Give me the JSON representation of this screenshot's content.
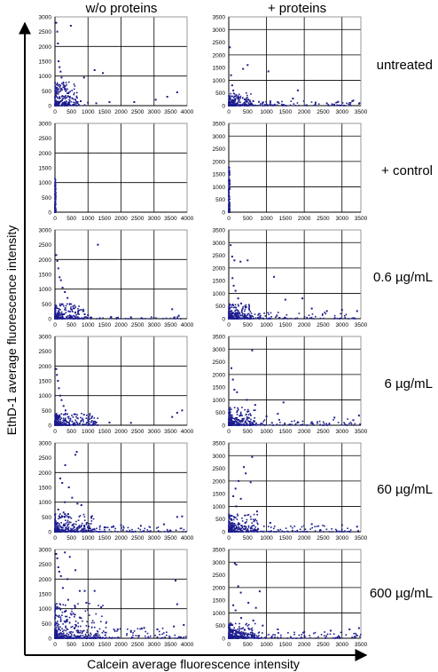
{
  "header": {
    "col_left": "w/o proteins",
    "col_right": "+ proteins"
  },
  "axes": {
    "xlabel": "Calcein average fluorescence intensity",
    "ylabel": "EthD-1 average fluorescence intensity"
  },
  "rows": [
    {
      "label": "untreated"
    },
    {
      "label": "+ control"
    },
    {
      "label": "0.6 µg/mL"
    },
    {
      "label": "6 µg/mL"
    },
    {
      "label": "60 µg/mL"
    },
    {
      "label": "600 µg/mL"
    }
  ],
  "colors": {
    "points": "#1c1c8e",
    "grid": "#000000",
    "frame": "#808080"
  },
  "chart_data": [
    {
      "type": "scatter",
      "panel": "untreated_wo",
      "xlim": [
        0,
        4000
      ],
      "ylim": [
        0,
        3000
      ],
      "xticks": [
        0,
        500,
        1000,
        1500,
        2000,
        2500,
        3000,
        3500,
        4000
      ],
      "yticks": [
        0,
        500,
        1000,
        1500,
        2000,
        2500,
        3000
      ],
      "points": [
        [
          40,
          2800
        ],
        [
          70,
          2500
        ],
        [
          90,
          2100
        ],
        [
          110,
          1500
        ],
        [
          140,
          1300
        ],
        [
          170,
          1150
        ],
        [
          200,
          950
        ],
        [
          260,
          700
        ],
        [
          320,
          560
        ],
        [
          380,
          420
        ],
        [
          450,
          300
        ],
        [
          520,
          250
        ],
        [
          620,
          200
        ],
        [
          780,
          150
        ],
        [
          1000,
          100
        ],
        [
          1250,
          80
        ],
        [
          1450,
          1100
        ],
        [
          1200,
          1200
        ],
        [
          880,
          950
        ],
        [
          480,
          2700
        ],
        [
          3050,
          200
        ],
        [
          3400,
          300
        ],
        [
          3700,
          450
        ],
        [
          2400,
          120
        ],
        [
          1650,
          120
        ],
        [
          60,
          600
        ],
        [
          90,
          400
        ],
        [
          130,
          250
        ],
        [
          180,
          150
        ],
        [
          240,
          90
        ],
        [
          320,
          60
        ],
        [
          420,
          40
        ],
        [
          560,
          30
        ],
        [
          720,
          25
        ],
        [
          900,
          15
        ]
      ],
      "dense": [
        {
          "x": [
            0,
            700
          ],
          "y": [
            0,
            800
          ],
          "n": 240
        }
      ]
    },
    {
      "type": "scatter",
      "panel": "untreated_plus",
      "xlim": [
        0,
        3500
      ],
      "ylim": [
        0,
        3500
      ],
      "xticks": [
        0,
        500,
        1000,
        1500,
        2000,
        2500,
        3000,
        3500
      ],
      "yticks": [
        0,
        500,
        1000,
        1500,
        2000,
        2500,
        3000,
        3500
      ],
      "points": [
        [
          30,
          2300
        ],
        [
          500,
          1600
        ],
        [
          380,
          1450
        ],
        [
          1050,
          1350
        ],
        [
          1830,
          600
        ],
        [
          1700,
          280
        ],
        [
          2300,
          120
        ],
        [
          2900,
          150
        ],
        [
          3300,
          200
        ],
        [
          3450,
          80
        ],
        [
          1300,
          140
        ],
        [
          900,
          120
        ],
        [
          2600,
          90
        ],
        [
          60,
          1200
        ],
        [
          90,
          800
        ],
        [
          120,
          600
        ],
        [
          200,
          400
        ],
        [
          300,
          300
        ],
        [
          420,
          250
        ],
        [
          650,
          180
        ],
        [
          800,
          150
        ]
      ],
      "dense": [
        {
          "x": [
            0,
            600
          ],
          "y": [
            0,
            500
          ],
          "n": 180
        },
        {
          "x": [
            0,
            3500
          ],
          "y": [
            0,
            200
          ],
          "n": 160
        }
      ]
    },
    {
      "type": "scatter",
      "panel": "control_wo",
      "xlim": [
        0,
        4000
      ],
      "ylim": [
        0,
        3000
      ],
      "xticks": [
        0,
        500,
        1000,
        1500,
        2000,
        2500,
        3000,
        3500,
        4000
      ],
      "yticks": [
        0,
        500,
        1000,
        1500,
        2000,
        2500,
        3000
      ],
      "points": [],
      "dense": [
        {
          "x": [
            0,
            25
          ],
          "y": [
            0,
            1150
          ],
          "n": 160
        }
      ]
    },
    {
      "type": "scatter",
      "panel": "control_plus",
      "xlim": [
        0,
        3500
      ],
      "ylim": [
        0,
        3500
      ],
      "xticks": [
        0,
        500,
        1000,
        1500,
        2000,
        2500,
        3000,
        3500
      ],
      "yticks": [
        0,
        500,
        1000,
        1500,
        2000,
        2500,
        3000,
        3500
      ],
      "points": [],
      "dense": [
        {
          "x": [
            0,
            30
          ],
          "y": [
            0,
            1800
          ],
          "n": 170
        }
      ]
    },
    {
      "type": "scatter",
      "panel": "dose06_wo",
      "xlim": [
        0,
        4000
      ],
      "ylim": [
        0,
        3000
      ],
      "xticks": [
        0,
        500,
        1000,
        1500,
        2000,
        2500,
        3000,
        3500,
        4000
      ],
      "yticks": [
        0,
        500,
        1000,
        1500,
        2000,
        2500,
        3000
      ],
      "points": [
        [
          40,
          2150
        ],
        [
          70,
          1950
        ],
        [
          100,
          1700
        ],
        [
          140,
          1400
        ],
        [
          180,
          1300
        ],
        [
          230,
          1050
        ],
        [
          300,
          900
        ],
        [
          380,
          700
        ],
        [
          450,
          500
        ],
        [
          560,
          350
        ],
        [
          700,
          250
        ],
        [
          900,
          150
        ],
        [
          1000,
          120
        ],
        [
          1300,
          2500
        ],
        [
          3550,
          320
        ],
        [
          3750,
          100
        ],
        [
          2300,
          50
        ],
        [
          1700,
          60
        ]
      ],
      "dense": [
        {
          "x": [
            0,
            900
          ],
          "y": [
            0,
            500
          ],
          "n": 220
        },
        {
          "x": [
            0,
            4000
          ],
          "y": [
            0,
            60
          ],
          "n": 80
        }
      ]
    },
    {
      "type": "scatter",
      "panel": "dose06_plus",
      "xlim": [
        0,
        3500
      ],
      "ylim": [
        0,
        3500
      ],
      "xticks": [
        0,
        500,
        1000,
        1500,
        2000,
        2500,
        3000,
        3500
      ],
      "yticks": [
        0,
        500,
        1000,
        1500,
        2000,
        2500,
        3000,
        3500
      ],
      "points": [
        [
          50,
          2900
        ],
        [
          90,
          2450
        ],
        [
          150,
          2300
        ],
        [
          500,
          2300
        ],
        [
          310,
          2250
        ],
        [
          1200,
          1650
        ],
        [
          1950,
          800
        ],
        [
          1500,
          750
        ],
        [
          2600,
          300
        ],
        [
          3000,
          350
        ],
        [
          3400,
          300
        ],
        [
          2200,
          400
        ],
        [
          100,
          1600
        ],
        [
          130,
          1300
        ],
        [
          180,
          1100
        ],
        [
          250,
          800
        ],
        [
          330,
          600
        ],
        [
          450,
          450
        ]
      ],
      "dense": [
        {
          "x": [
            0,
            600
          ],
          "y": [
            0,
            600
          ],
          "n": 200
        },
        {
          "x": [
            0,
            3500
          ],
          "y": [
            0,
            250
          ],
          "n": 160
        }
      ]
    },
    {
      "type": "scatter",
      "panel": "dose6_wo",
      "xlim": [
        0,
        4000
      ],
      "ylim": [
        0,
        3000
      ],
      "xticks": [
        0,
        500,
        1000,
        1500,
        2000,
        2500,
        3000,
        3500,
        4000
      ],
      "yticks": [
        0,
        500,
        1000,
        1500,
        2000,
        2500,
        3000
      ],
      "points": [
        [
          40,
          1900
        ],
        [
          60,
          1700
        ],
        [
          90,
          1500
        ],
        [
          120,
          1250
        ],
        [
          160,
          1000
        ],
        [
          200,
          850
        ],
        [
          260,
          650
        ],
        [
          320,
          500
        ],
        [
          3850,
          500
        ],
        [
          3700,
          420
        ],
        [
          3550,
          280
        ],
        [
          2300,
          80
        ],
        [
          1650,
          90
        ]
      ],
      "dense": [
        {
          "x": [
            0,
            1300
          ],
          "y": [
            0,
            400
          ],
          "n": 300
        }
      ]
    },
    {
      "type": "scatter",
      "panel": "dose6_plus",
      "xlim": [
        0,
        3500
      ],
      "ylim": [
        0,
        3500
      ],
      "xticks": [
        0,
        500,
        1000,
        1500,
        2000,
        2500,
        3000,
        3500
      ],
      "yticks": [
        0,
        500,
        1000,
        1500,
        2000,
        2500,
        3000,
        3500
      ],
      "points": [
        [
          620,
          2950
        ],
        [
          70,
          2250
        ],
        [
          110,
          1800
        ],
        [
          150,
          1400
        ],
        [
          220,
          1300
        ],
        [
          480,
          1000
        ],
        [
          700,
          800
        ],
        [
          1300,
          450
        ],
        [
          1450,
          900
        ],
        [
          2800,
          300
        ],
        [
          3300,
          200
        ],
        [
          3450,
          380
        ],
        [
          2200,
          120
        ],
        [
          1000,
          350
        ]
      ],
      "dense": [
        {
          "x": [
            0,
            700
          ],
          "y": [
            0,
            700
          ],
          "n": 230
        },
        {
          "x": [
            0,
            3500
          ],
          "y": [
            0,
            250
          ],
          "n": 170
        }
      ]
    },
    {
      "type": "scatter",
      "panel": "dose60_wo",
      "xlim": [
        0,
        4000
      ],
      "ylim": [
        0,
        3000
      ],
      "xticks": [
        0,
        500,
        1000,
        1500,
        2000,
        2500,
        3000,
        3500,
        4000
      ],
      "yticks": [
        0,
        500,
        1000,
        1500,
        2000,
        2500,
        3000
      ],
      "points": [
        [
          660,
          2700
        ],
        [
          620,
          2600
        ],
        [
          310,
          2250
        ],
        [
          160,
          1800
        ],
        [
          220,
          1650
        ],
        [
          420,
          1500
        ],
        [
          520,
          1150
        ],
        [
          300,
          1000
        ],
        [
          680,
          950
        ],
        [
          800,
          900
        ],
        [
          100,
          750
        ],
        [
          260,
          650
        ],
        [
          400,
          600
        ],
        [
          1100,
          500
        ],
        [
          3700,
          500
        ],
        [
          3850,
          520
        ],
        [
          3300,
          250
        ],
        [
          2600,
          200
        ],
        [
          2000,
          220
        ],
        [
          1500,
          150
        ]
      ],
      "dense": [
        {
          "x": [
            0,
            1200
          ],
          "y": [
            0,
            600
          ],
          "n": 260
        },
        {
          "x": [
            0,
            4000
          ],
          "y": [
            0,
            200
          ],
          "n": 170
        }
      ]
    },
    {
      "type": "scatter",
      "panel": "dose60_plus",
      "xlim": [
        0,
        3500
      ],
      "ylim": [
        0,
        3500
      ],
      "xticks": [
        0,
        500,
        1000,
        1500,
        2000,
        2500,
        3000,
        3500
      ],
      "yticks": [
        0,
        500,
        1000,
        1500,
        2000,
        2500,
        3000,
        3500
      ],
      "points": [
        [
          620,
          2950
        ],
        [
          400,
          2550
        ],
        [
          450,
          2300
        ],
        [
          260,
          2000
        ],
        [
          580,
          1950
        ],
        [
          180,
          1700
        ],
        [
          120,
          1400
        ],
        [
          320,
          1300
        ],
        [
          200,
          1000
        ],
        [
          750,
          800
        ],
        [
          1100,
          350
        ],
        [
          2200,
          300
        ],
        [
          3000,
          260
        ],
        [
          3400,
          200
        ]
      ],
      "dense": [
        {
          "x": [
            0,
            800
          ],
          "y": [
            0,
            700
          ],
          "n": 230
        },
        {
          "x": [
            0,
            3500
          ],
          "y": [
            0,
            250
          ],
          "n": 170
        }
      ]
    },
    {
      "type": "scatter",
      "panel": "dose600_wo",
      "xlim": [
        0,
        4000
      ],
      "ylim": [
        0,
        3000
      ],
      "xticks": [
        0,
        500,
        1000,
        1500,
        2000,
        2500,
        3000,
        3500,
        4000
      ],
      "yticks": [
        0,
        500,
        1000,
        1500,
        2000,
        2500,
        3000
      ],
      "points": [
        [
          40,
          2850
        ],
        [
          70,
          2700
        ],
        [
          100,
          2400
        ],
        [
          130,
          2250
        ],
        [
          300,
          2900
        ],
        [
          450,
          2750
        ],
        [
          620,
          2300
        ],
        [
          180,
          2100
        ],
        [
          380,
          2000
        ],
        [
          240,
          1700
        ],
        [
          750,
          1600
        ],
        [
          900,
          1600
        ],
        [
          1200,
          1600
        ],
        [
          400,
          1300
        ],
        [
          600,
          1100
        ],
        [
          950,
          1200
        ],
        [
          1400,
          1050
        ],
        [
          300,
          900
        ],
        [
          500,
          800
        ],
        [
          750,
          700
        ],
        [
          3650,
          1950
        ],
        [
          3700,
          1150
        ],
        [
          3900,
          450
        ],
        [
          3600,
          400
        ],
        [
          3100,
          300
        ],
        [
          2700,
          350
        ],
        [
          2300,
          250
        ],
        [
          1900,
          300
        ]
      ],
      "dense": [
        {
          "x": [
            0,
            1600
          ],
          "y": [
            0,
            1200
          ],
          "n": 320
        },
        {
          "x": [
            0,
            4000
          ],
          "y": [
            0,
            350
          ],
          "n": 200
        }
      ]
    },
    {
      "type": "scatter",
      "panel": "dose600_plus",
      "xlim": [
        0,
        3500
      ],
      "ylim": [
        0,
        3500
      ],
      "xticks": [
        0,
        500,
        1000,
        1500,
        2000,
        2500,
        3000,
        3500
      ],
      "yticks": [
        0,
        500,
        1000,
        1500,
        2000,
        2500,
        3000,
        3500
      ],
      "points": [
        [
          160,
          2950
        ],
        [
          200,
          2900
        ],
        [
          250,
          2050
        ],
        [
          320,
          1800
        ],
        [
          520,
          1400
        ],
        [
          720,
          1200
        ],
        [
          820,
          1850
        ],
        [
          120,
          1300
        ],
        [
          180,
          1100
        ],
        [
          330,
          800
        ],
        [
          650,
          700
        ],
        [
          900,
          500
        ],
        [
          1300,
          350
        ],
        [
          2000,
          250
        ],
        [
          2700,
          300
        ],
        [
          3200,
          350
        ],
        [
          3450,
          400
        ]
      ],
      "dense": [
        {
          "x": [
            0,
            700
          ],
          "y": [
            0,
            600
          ],
          "n": 230
        },
        {
          "x": [
            0,
            3500
          ],
          "y": [
            0,
            250
          ],
          "n": 190
        }
      ]
    }
  ]
}
